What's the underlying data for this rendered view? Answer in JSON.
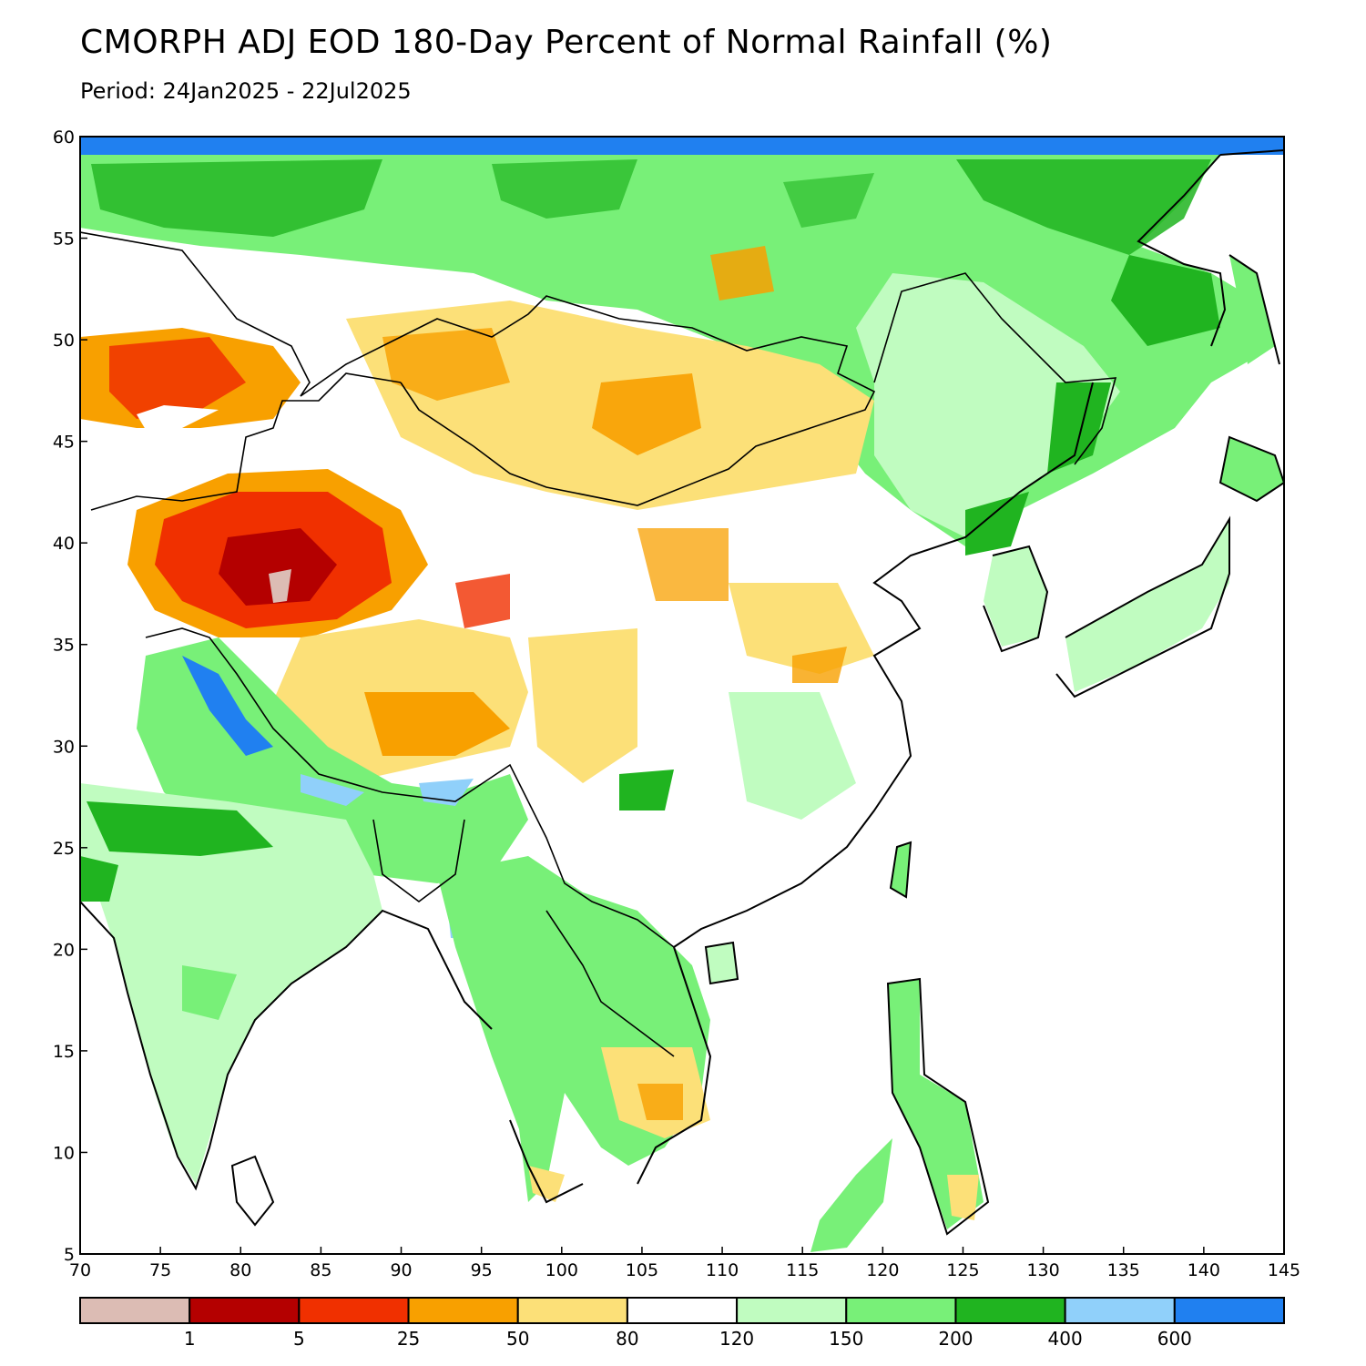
{
  "header": {
    "title": "CMORPH ADJ EOD 180-Day Percent of Normal Rainfall (%)",
    "period": "Period: 24Jan2025 - 22Jul2025"
  },
  "map": {
    "lon_range": [
      70,
      145
    ],
    "lat_range": [
      5,
      60
    ],
    "x_ticks": [
      "70",
      "75",
      "80",
      "85",
      "90",
      "95",
      "100",
      "105",
      "110",
      "115",
      "120",
      "125",
      "130",
      "135",
      "140",
      "145"
    ],
    "y_ticks": [
      "5",
      "10",
      "15",
      "20",
      "25",
      "30",
      "35",
      "40",
      "45",
      "50",
      "55",
      "60"
    ]
  },
  "colorbar": {
    "colors": [
      "#dcbcb4",
      "#b40000",
      "#f03000",
      "#f8a000",
      "#fce078",
      "#ffffff",
      "#c0fcc0",
      "#78f078",
      "#20b420",
      "#90d0fa",
      "#2080f0"
    ],
    "labels": [
      "1",
      "5",
      "25",
      "50",
      "80",
      "120",
      "150",
      "200",
      "400",
      "600"
    ]
  }
}
